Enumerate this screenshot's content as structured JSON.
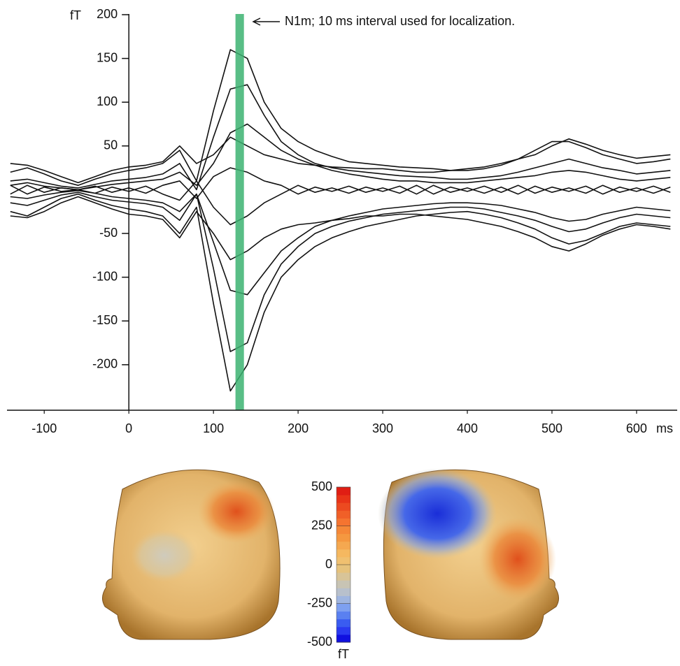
{
  "chart_data": [
    {
      "type": "line",
      "x_unit": "ms",
      "y_unit": "fT",
      "x": [
        -140,
        -120,
        -100,
        -80,
        -60,
        -40,
        -20,
        0,
        20,
        40,
        60,
        80,
        100,
        120,
        140,
        160,
        180,
        200,
        220,
        240,
        260,
        280,
        300,
        320,
        340,
        360,
        380,
        400,
        420,
        440,
        460,
        480,
        500,
        520,
        540,
        560,
        580,
        600,
        620,
        640
      ],
      "series": [
        {
          "color": "#111111",
          "values": [
            20,
            25,
            18,
            10,
            5,
            12,
            18,
            22,
            25,
            30,
            45,
            10,
            90,
            160,
            150,
            100,
            70,
            55,
            45,
            38,
            32,
            30,
            28,
            26,
            25,
            24,
            22,
            22,
            24,
            28,
            35,
            45,
            55,
            55,
            48,
            40,
            35,
            30,
            32,
            35
          ]
        },
        {
          "color": "#111111",
          "values": [
            -25,
            -30,
            -20,
            -10,
            -5,
            -12,
            -18,
            -22,
            -25,
            -30,
            -50,
            -20,
            -130,
            -230,
            -200,
            -140,
            -100,
            -80,
            -65,
            -55,
            -48,
            -42,
            -38,
            -34,
            -30,
            -28,
            -26,
            -25,
            -28,
            -32,
            -38,
            -45,
            -55,
            -62,
            -58,
            -50,
            -42,
            -38,
            -40,
            -42
          ]
        },
        {
          "color": "#111111",
          "values": [
            10,
            12,
            8,
            4,
            2,
            6,
            10,
            12,
            14,
            18,
            30,
            0,
            60,
            115,
            120,
            85,
            55,
            40,
            30,
            25,
            22,
            20,
            18,
            16,
            15,
            14,
            12,
            12,
            14,
            16,
            20,
            25,
            30,
            35,
            30,
            25,
            22,
            18,
            20,
            22
          ]
        },
        {
          "color": "#111111",
          "values": [
            -15,
            -18,
            -12,
            -6,
            -3,
            -8,
            -12,
            -14,
            -16,
            -20,
            -35,
            -5,
            -90,
            -185,
            -175,
            -120,
            -85,
            -65,
            -50,
            -42,
            -36,
            -32,
            -28,
            -26,
            -24,
            -22,
            -20,
            -20,
            -22,
            -26,
            -30,
            -35,
            -42,
            -48,
            -45,
            -38,
            -32,
            -28,
            -30,
            -32
          ]
        },
        {
          "color": "#111111",
          "values": [
            5,
            8,
            4,
            2,
            0,
            3,
            6,
            8,
            10,
            12,
            20,
            5,
            30,
            65,
            75,
            60,
            45,
            35,
            28,
            22,
            18,
            15,
            12,
            10,
            10,
            8,
            8,
            8,
            10,
            12,
            14,
            16,
            20,
            22,
            20,
            16,
            12,
            10,
            12,
            14
          ]
        },
        {
          "color": "#111111",
          "values": [
            -8,
            -10,
            -6,
            -3,
            -1,
            -4,
            -8,
            -10,
            -12,
            -15,
            -25,
            -5,
            -60,
            -115,
            -120,
            -95,
            -70,
            -55,
            -42,
            -35,
            -30,
            -26,
            -22,
            -20,
            -18,
            -16,
            -15,
            -15,
            -16,
            -18,
            -22,
            -26,
            -32,
            -36,
            -34,
            -28,
            -24,
            -20,
            -22,
            -24
          ]
        },
        {
          "color": "#111111",
          "values": [
            30,
            28,
            22,
            15,
            8,
            15,
            22,
            26,
            28,
            32,
            50,
            30,
            40,
            60,
            50,
            40,
            35,
            30,
            28,
            26,
            25,
            24,
            24,
            22,
            20,
            20,
            22,
            24,
            26,
            30,
            35,
            40,
            50,
            58,
            52,
            45,
            40,
            36,
            38,
            40
          ]
        },
        {
          "color": "#111111",
          "values": [
            -30,
            -32,
            -25,
            -15,
            -8,
            -15,
            -22,
            -28,
            -30,
            -34,
            -55,
            -25,
            -50,
            -80,
            -70,
            -55,
            -45,
            -40,
            -38,
            -35,
            -33,
            -30,
            -30,
            -28,
            -28,
            -30,
            -32,
            -34,
            -38,
            -42,
            -48,
            -55,
            -65,
            -70,
            -62,
            -52,
            -45,
            -40,
            -42,
            -45
          ]
        },
        {
          "color": "#111111",
          "values": [
            5,
            -5,
            3,
            -2,
            0,
            4,
            -3,
            2,
            -4,
            5,
            10,
            -10,
            15,
            25,
            20,
            10,
            5,
            -5,
            3,
            -2,
            4,
            -3,
            2,
            -4,
            5,
            -5,
            3,
            -2,
            4,
            -3,
            5,
            -4,
            3,
            -2,
            4,
            -5,
            3,
            -2,
            4,
            -3
          ]
        },
        {
          "color": "#111111",
          "values": [
            -5,
            5,
            -3,
            2,
            0,
            -4,
            3,
            -2,
            4,
            -5,
            -12,
            10,
            -20,
            -40,
            -30,
            -15,
            -5,
            5,
            -3,
            2,
            -4,
            3,
            -2,
            4,
            -5,
            5,
            -3,
            2,
            -4,
            3,
            -5,
            4,
            -3,
            2,
            -4,
            5,
            -3,
            2,
            -4,
            3
          ]
        }
      ],
      "xlim": [
        -144,
        648
      ],
      "ylim": [
        -252,
        200
      ],
      "xticks": [
        -100,
        0,
        100,
        200,
        300,
        400,
        500,
        600
      ],
      "yticks": [
        -200,
        -150,
        -100,
        -50,
        50,
        100,
        150,
        200
      ],
      "annotation": {
        "text": "N1m; 10 ms interval used for localization.",
        "span": [
          126,
          136
        ],
        "color": "#3cb371"
      }
    },
    {
      "type": "colorbar",
      "unit": "fT",
      "ylim": [
        -500,
        500
      ],
      "yticks": [
        -500,
        -250,
        0,
        250,
        500
      ],
      "colors": [
        "#1010e0",
        "#2a3af0",
        "#3a5cf0",
        "#5a80f0",
        "#7ea0f0",
        "#9fb5e0",
        "#b8c0cc",
        "#c8c4b4",
        "#d8c498",
        "#e6c27c",
        "#f0c070",
        "#f5b860",
        "#f5a850",
        "#f59840",
        "#f58838",
        "#f57430",
        "#f06028",
        "#ec4a20",
        "#e83418",
        "#e01e14"
      ]
    }
  ]
}
